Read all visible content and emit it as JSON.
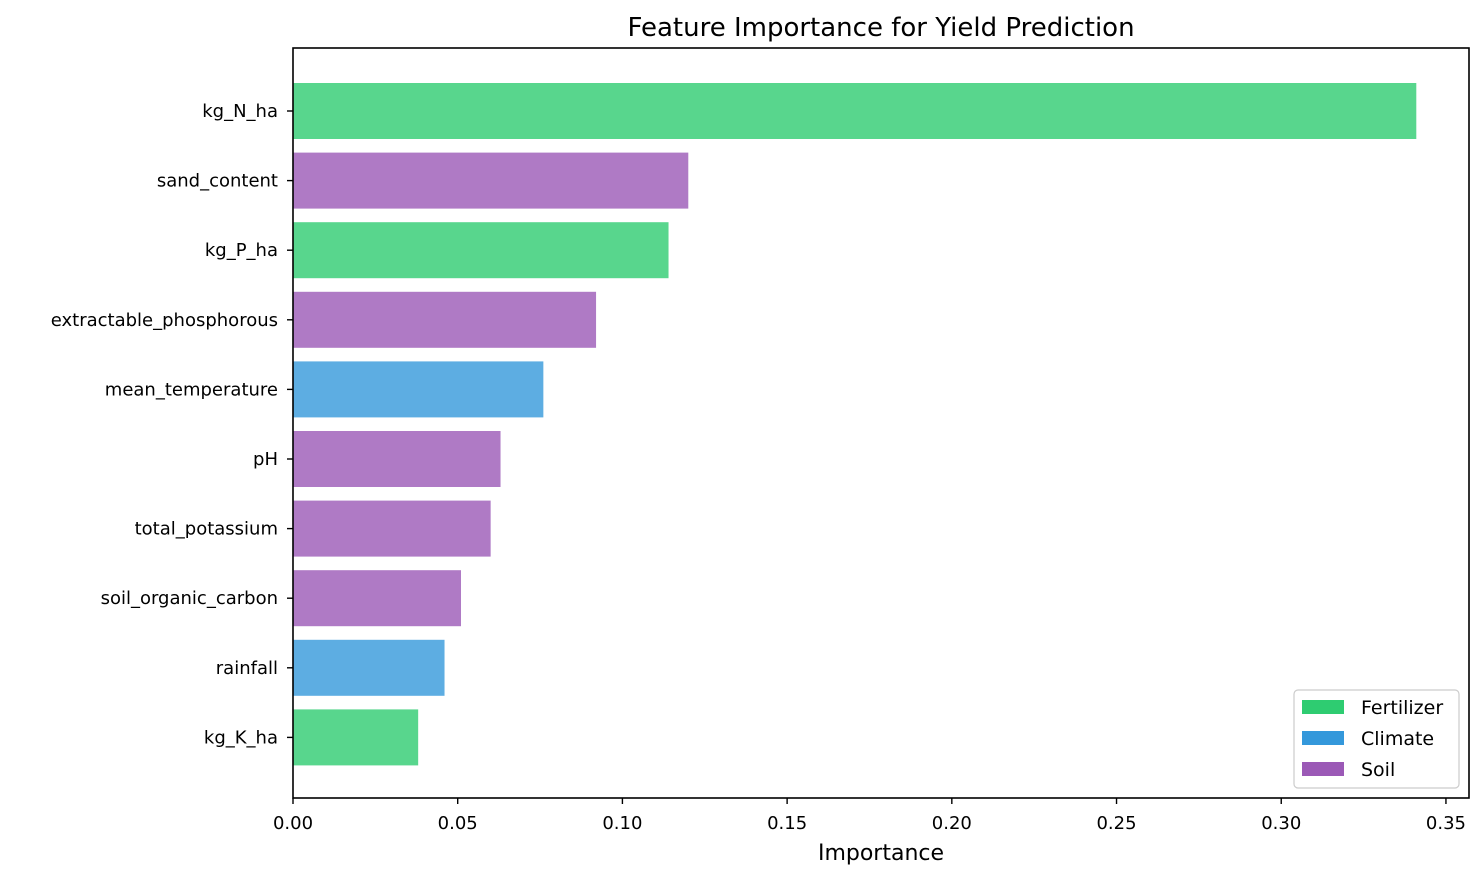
{
  "chart_data": {
    "type": "bar",
    "orientation": "horizontal",
    "title": "Feature Importance for Yield Prediction",
    "xlabel": "Importance",
    "ylabel": "",
    "xlim": [
      0,
      0.357
    ],
    "xticks": [
      0.0,
      0.05,
      0.1,
      0.15,
      0.2,
      0.25,
      0.3,
      0.35
    ],
    "xtick_labels": [
      "0.00",
      "0.05",
      "0.10",
      "0.15",
      "0.20",
      "0.25",
      "0.30",
      "0.35"
    ],
    "grid": false,
    "legend_position": "bottom-right",
    "categories": [
      "kg_N_ha",
      "sand_content",
      "kg_P_ha",
      "extractable_phosphorous",
      "mean_temperature",
      "pH",
      "total_potassium",
      "soil_organic_carbon",
      "rainfall",
      "kg_K_ha"
    ],
    "values": [
      0.341,
      0.12,
      0.114,
      0.092,
      0.076,
      0.063,
      0.06,
      0.051,
      0.046,
      0.038
    ],
    "groups": [
      "Fertilizer",
      "Soil",
      "Fertilizer",
      "Soil",
      "Climate",
      "Soil",
      "Soil",
      "Soil",
      "Climate",
      "Fertilizer"
    ],
    "legend": [
      {
        "name": "Fertilizer",
        "color": "#2ecc71"
      },
      {
        "name": "Climate",
        "color": "#3498db"
      },
      {
        "name": "Soil",
        "color": "#9b59b6"
      }
    ],
    "bar_alpha": 0.8
  }
}
